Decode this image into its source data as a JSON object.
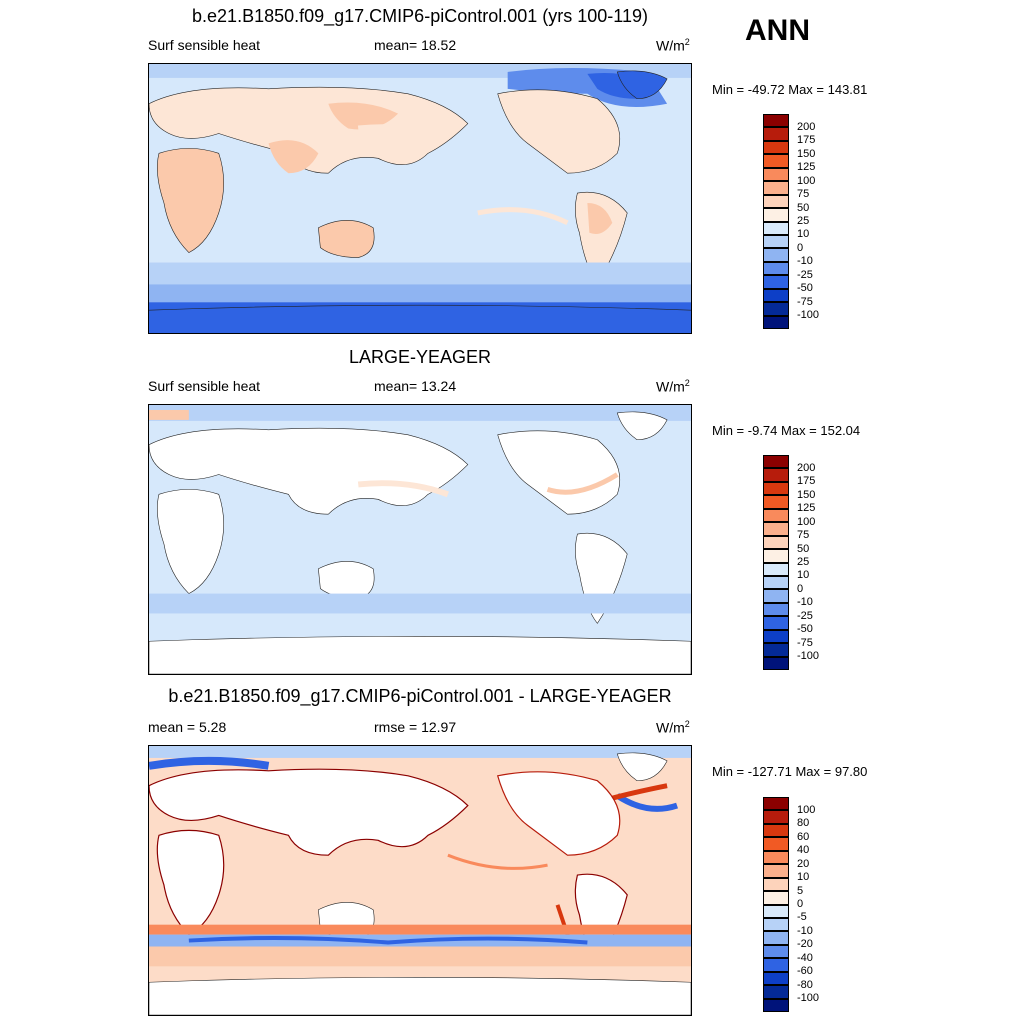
{
  "season": "ANN",
  "panels": [
    {
      "title": "b.e21.B1850.f09_g17.CMIP6-piControl.001 (yrs 100-119)",
      "left_label": "Surf sensible heat",
      "center_label": "mean=  18.52",
      "units": "W/m",
      "units_sup": "2",
      "minmax": "Min = -49.72 Max = 143.81"
    },
    {
      "title": "LARGE-YEAGER",
      "left_label": "Surf sensible heat",
      "center_label": "mean=  13.24",
      "units": "W/m",
      "units_sup": "2",
      "minmax": "Min =  -9.74 Max = 152.04"
    },
    {
      "title": "b.e21.B1850.f09_g17.CMIP6-piControl.001 - LARGE-YEAGER",
      "left_label": "mean =   5.28",
      "center_label": "rmse =   12.97",
      "units": "W/m",
      "units_sup": "2",
      "minmax": "Min = -127.71 Max =  97.80"
    }
  ],
  "colorbars": {
    "abs_levels": [
      "200",
      "175",
      "150",
      "125",
      "100",
      "75",
      "50",
      "25",
      "10",
      "0",
      "-10",
      "-25",
      "-50",
      "-75",
      "-100"
    ],
    "abs_colors": [
      "#8b0000",
      "#b71c0c",
      "#d8380f",
      "#f15a24",
      "#f98a5c",
      "#fbb08c",
      "#fdd3bb",
      "#fdf0e4",
      "#d9eafb",
      "#b7d2f7",
      "#8fb4f2",
      "#5e8cec",
      "#2f63e3",
      "#0d3fc7",
      "#042a97",
      "#00137a"
    ],
    "diff_levels": [
      "100",
      "80",
      "60",
      "40",
      "20",
      "10",
      "5",
      "0",
      "-5",
      "-10",
      "-20",
      "-40",
      "-60",
      "-80",
      "-100"
    ],
    "diff_colors": [
      "#8b0000",
      "#b71c0c",
      "#d8380f",
      "#f15a24",
      "#f98a5c",
      "#fbb08c",
      "#fdd3bb",
      "#fdf0e4",
      "#d9eafb",
      "#b7d2f7",
      "#8fb4f2",
      "#5e8cec",
      "#2f63e3",
      "#0d3fc7",
      "#042a97",
      "#00137a"
    ]
  },
  "map_colors": {
    "ocean_abs": "#d6e8fb",
    "land_warm": "#fbc9ab",
    "land_cool": "#fde6d6",
    "ice_blue": "#2f63e3",
    "sea_blue": "#b7d2f7",
    "diff_ocean": "#fddcc8",
    "diff_warm": "#f98a5c",
    "diff_red": "#d8380f"
  }
}
